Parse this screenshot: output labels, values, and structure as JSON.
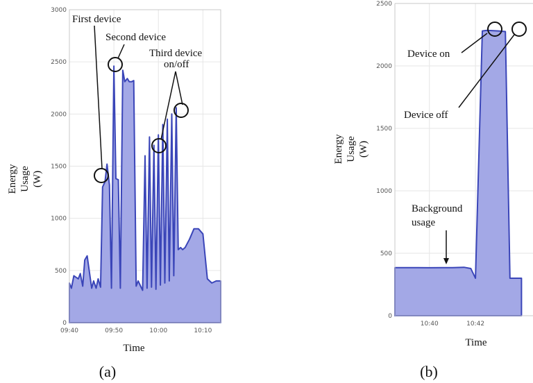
{
  "chart_data": [
    {
      "type": "area",
      "panel_label": "(a)",
      "xlabel": "Time",
      "ylabel": [
        "Energy",
        "Usage",
        "(W)"
      ],
      "ylim": [
        0,
        3000
      ],
      "yticks": [
        0,
        500,
        1000,
        1500,
        2000,
        2500,
        3000
      ],
      "xlim": [
        "09:40",
        "10:14"
      ],
      "xticks": [
        "09:40",
        "09:50",
        "10:00",
        "10:10"
      ],
      "grid": true,
      "series_color": "#3a45b8",
      "fill_color": "#a3a8e6",
      "x": [
        "09:40",
        "09:40",
        "09:41",
        "09:42",
        "09:42",
        "09:43",
        "09:43",
        "09:44",
        "09:45",
        "09:45",
        "09:46",
        "09:46",
        "09:47",
        "09:47",
        "09:48",
        "09:48",
        "09:49",
        "09:49",
        "09:50",
        "09:50",
        "09:51",
        "09:51",
        "09:52",
        "09:52",
        "09:53",
        "09:53",
        "09:54",
        "09:54",
        "09:55",
        "09:55",
        "09:56",
        "09:56",
        "09:57",
        "09:57",
        "09:58",
        "09:58",
        "09:59",
        "09:59",
        "10:00",
        "10:00",
        "10:01",
        "10:01",
        "10:02",
        "10:02",
        "10:03",
        "10:03",
        "10:04",
        "10:04",
        "10:05",
        "10:05",
        "10:06",
        "10:07",
        "10:08",
        "10:09",
        "10:10",
        "10:11",
        "10:12",
        "10:13",
        "10:14"
      ],
      "y": [
        380,
        330,
        450,
        420,
        470,
        350,
        600,
        640,
        330,
        400,
        330,
        420,
        340,
        1300,
        1350,
        1520,
        1320,
        330,
        2460,
        1380,
        1370,
        330,
        2420,
        2310,
        2340,
        2310,
        2310,
        2320,
        350,
        400,
        350,
        310,
        1600,
        330,
        1780,
        340,
        1700,
        320,
        1800,
        360,
        1900,
        380,
        1950,
        400,
        2000,
        450,
        2060,
        700,
        720,
        700,
        720,
        800,
        900,
        900,
        850,
        420,
        380,
        400,
        400
      ],
      "annotations": [
        {
          "text": "First device",
          "x": "09:48",
          "y": 1400
        },
        {
          "text": "Second device",
          "x": "09:50",
          "y": 2460
        },
        {
          "text": "Third device",
          "line2": "on/off",
          "x": "10:01",
          "y": 1680
        },
        {
          "text": "",
          "x": "10:03",
          "y": 2010
        }
      ]
    },
    {
      "type": "area",
      "panel_label": "(b)",
      "xlabel": "Time",
      "ylabel": [
        "Energy",
        "Usage",
        "(W)"
      ],
      "ylim": [
        0,
        2500
      ],
      "yticks": [
        0,
        500,
        1000,
        1500,
        2000,
        2500
      ],
      "xticks": [
        "10:40",
        "10:42"
      ],
      "grid": true,
      "series_color": "#3a45b8",
      "fill_color": "#a3a8e6",
      "x_minutes": [
        38.5,
        39.0,
        39.5,
        40.0,
        40.5,
        41.0,
        41.5,
        41.8,
        42.0,
        42.3,
        42.5,
        43.0,
        43.3,
        43.5,
        44.0
      ],
      "y": [
        385,
        385,
        385,
        384,
        385,
        385,
        388,
        378,
        300,
        2280,
        2285,
        2280,
        2275,
        300,
        300
      ],
      "annotations": [
        {
          "text": "Device on",
          "x": 42.5,
          "y": 2290
        },
        {
          "text": "Device off",
          "x": 43.1,
          "y": 2290
        },
        {
          "text": "Background",
          "line2": "usage",
          "x": 40.0,
          "y": 385
        }
      ]
    }
  ]
}
